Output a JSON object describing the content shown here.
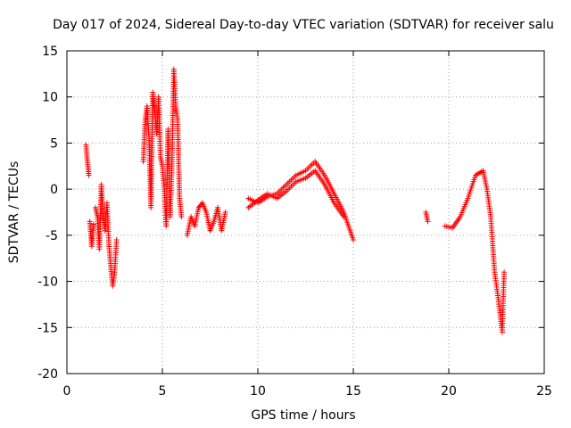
{
  "chart_data": {
    "type": "scatter",
    "title": "Day 017 of 2024, Sidereal Day-to-day VTEC variation (SDTVAR) for receiver salu",
    "xlabel": "GPS time / hours",
    "ylabel": "SDTVAR / TECUs",
    "xlim": [
      0,
      25
    ],
    "ylim": [
      -20,
      15
    ],
    "xticks": [
      0,
      5,
      10,
      15,
      20,
      25
    ],
    "yticks": [
      -20,
      -15,
      -10,
      -5,
      0,
      5,
      10,
      15
    ],
    "grid": true,
    "marker": "+",
    "color": "#ff0000",
    "series": [
      {
        "name": "SDTVAR",
        "segments": [
          {
            "x": [
              1.0,
              1.05,
              1.1,
              1.15
            ],
            "y": [
              4.8,
              3.5,
              2.5,
              1.5
            ]
          },
          {
            "x": [
              1.2,
              1.25,
              1.3,
              1.35,
              1.4
            ],
            "y": [
              -3.5,
              -4.8,
              -6.2,
              -4.5,
              -3.8
            ]
          },
          {
            "x": [
              1.5,
              1.6,
              1.7,
              1.8,
              1.9,
              2.0,
              2.1,
              2.2,
              2.3,
              2.4,
              2.5,
              2.6
            ],
            "y": [
              -2.0,
              -3.0,
              -6.5,
              0.5,
              -3.0,
              -4.5,
              -1.5,
              -6.0,
              -8.5,
              -10.5,
              -9.0,
              -5.5
            ]
          },
          {
            "x": [
              4.0,
              4.1,
              4.2,
              4.3,
              4.4,
              4.5,
              4.6,
              4.7,
              4.8,
              4.9,
              5.0,
              5.1,
              5.2,
              5.3,
              5.4,
              5.5,
              5.6,
              5.7,
              5.8,
              5.9,
              6.0
            ],
            "y": [
              3.0,
              7.5,
              9.0,
              5.5,
              -2.0,
              10.5,
              8.5,
              6.0,
              10.0,
              3.5,
              2.5,
              0.0,
              -4.0,
              6.5,
              -3.0,
              2.5,
              13.0,
              9.0,
              7.5,
              -1.0,
              -3.0
            ]
          },
          {
            "x": [
              6.3,
              6.5,
              6.7,
              6.9,
              7.1,
              7.3,
              7.5,
              7.7,
              7.9,
              8.1,
              8.3
            ],
            "y": [
              -5.0,
              -3.0,
              -4.0,
              -2.0,
              -1.5,
              -2.5,
              -4.5,
              -3.5,
              -2.0,
              -4.5,
              -2.5
            ]
          },
          {
            "x": [
              9.5,
              10.0,
              10.5,
              11.0,
              11.5,
              12.0,
              12.5,
              13.0,
              13.5,
              14.0,
              14.5,
              15.0
            ],
            "y": [
              -1.0,
              -1.5,
              -0.8,
              -0.5,
              0.5,
              1.5,
              2.0,
              3.0,
              1.5,
              -0.5,
              -2.5,
              -5.5
            ]
          },
          {
            "x": [
              9.5,
              10.0,
              10.5,
              11.0,
              11.5,
              12.0,
              12.5,
              13.0,
              13.5,
              14.0,
              14.5
            ],
            "y": [
              -2.0,
              -1.2,
              -0.5,
              -1.0,
              -0.2,
              0.8,
              1.2,
              2.0,
              0.5,
              -1.5,
              -3.0
            ]
          },
          {
            "x": [
              18.8,
              18.9
            ],
            "y": [
              -2.5,
              -3.5
            ]
          },
          {
            "x": [
              19.8,
              20.2,
              20.6,
              21.0,
              21.4,
              21.8,
              22.0,
              22.2,
              22.4,
              22.6,
              22.8,
              22.9
            ],
            "y": [
              -4.0,
              -4.2,
              -3.0,
              -1.0,
              1.5,
              2.0,
              0.0,
              -3.0,
              -9.0,
              -12.0,
              -15.5,
              -9.0
            ]
          }
        ]
      }
    ]
  }
}
